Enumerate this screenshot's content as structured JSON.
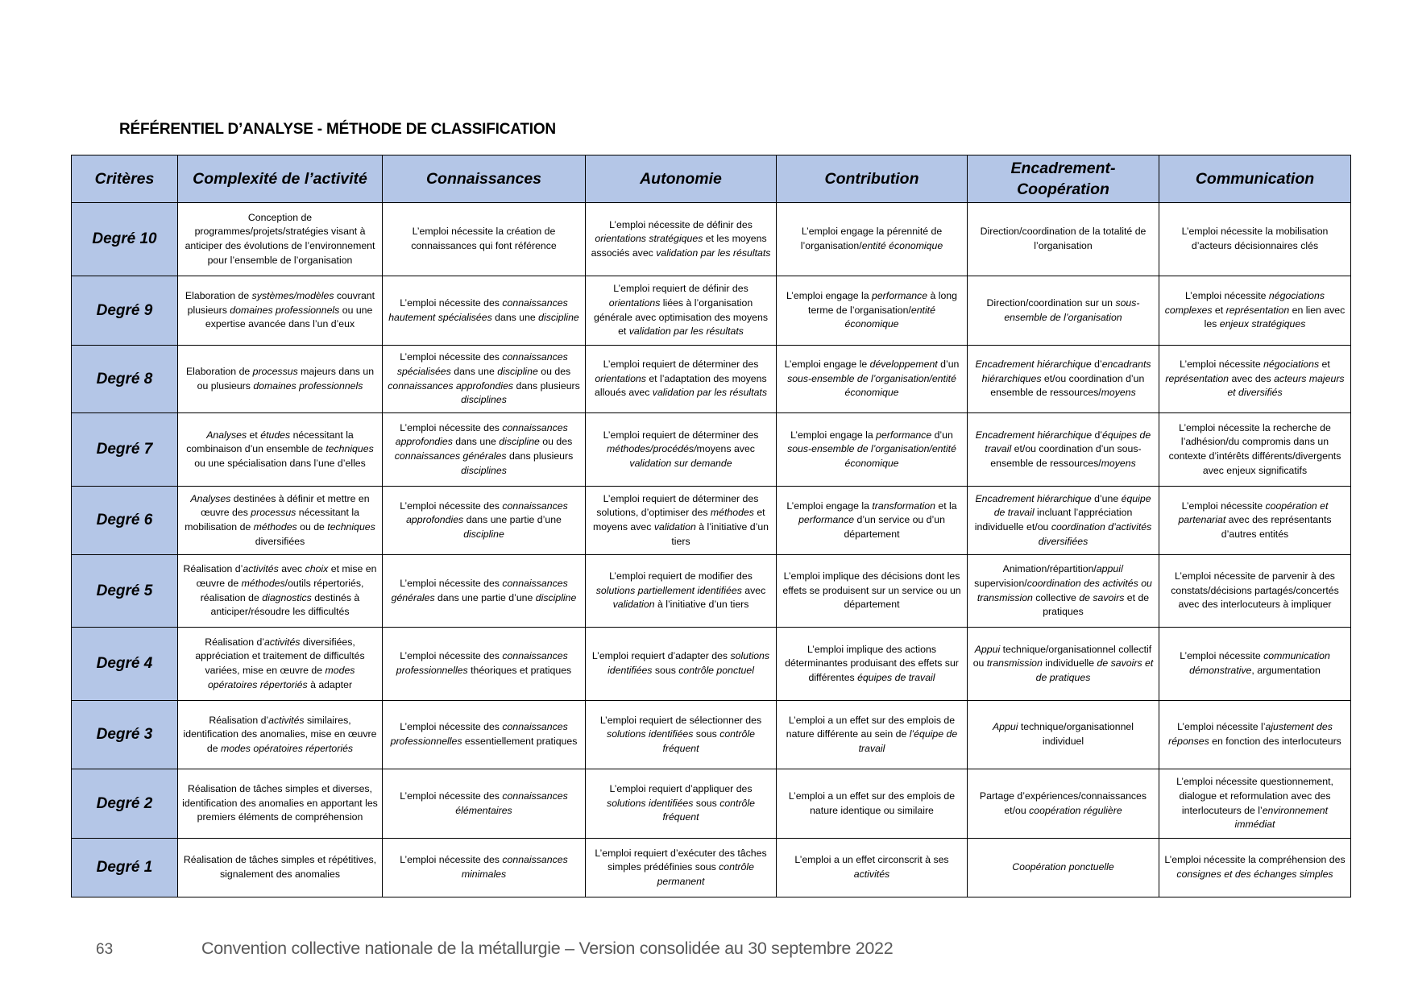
{
  "title": "RÉFÉRENTIEL D’ANALYSE - MÉTHODE DE CLASSIFICATION",
  "table": {
    "headers": [
      "Critères",
      "Complexité de l’activité",
      "Connaissances",
      "Autonomie",
      "Contribution",
      "Encadrement-Coopération",
      "Communication"
    ],
    "header_color": "#b4c6e7",
    "rows": [
      {
        "degree": "Degré 10",
        "cells": [
          [
            "Conception de programmes/projets/stratégies visant à anticiper des évolutions de l’environnement pour l’ensemble de l’organisation"
          ],
          [
            "L’emploi nécessite la création de connaissances qui font référence"
          ],
          [
            "L’emploi nécessite de définir des ",
            "orientations stratégiques",
            " et les moyens associés avec ",
            "validation par les résultats"
          ],
          [
            "L’emploi engage la pérennité de l’organisation/",
            "entité économique"
          ],
          [
            "Direction/coordination de la totalité de l’organisation"
          ],
          [
            "L’emploi nécessite la mobilisation d’acteurs décisionnaires clés"
          ]
        ]
      },
      {
        "degree": "Degré 9",
        "cells": [
          [
            "Elaboration de ",
            "systèmes/modèles",
            " couvrant plusieurs ",
            "domaines professionnels",
            " ou une expertise avancée dans l’un d’eux"
          ],
          [
            "L’emploi nécessite des ",
            "connaissances hautement spécialisées",
            " dans une ",
            "discipline"
          ],
          [
            "L’emploi requiert de définir des ",
            "orientations",
            " liées à l’organisation générale avec optimisation des moyens et ",
            "validation par les résultats"
          ],
          [
            "L’emploi engage la ",
            "performance",
            " à long terme de l’organisation/",
            "entité économique"
          ],
          [
            "Direction/coordination sur un ",
            "sous-ensemble de l’organisation"
          ],
          [
            "L’emploi nécessite ",
            "négociations complexes",
            " et ",
            "représentation",
            " en lien avec les ",
            "enjeux stratégiques"
          ]
        ]
      },
      {
        "degree": "Degré 8",
        "cells": [
          [
            "Elaboration de ",
            "processus",
            " majeurs dans un ou plusieurs ",
            "domaines professionnels"
          ],
          [
            "L’emploi nécessite des ",
            "connaissances spécialisées",
            " dans une ",
            "discipline",
            " ou des ",
            "connaissances approfondies",
            " dans plusieurs ",
            "disciplines"
          ],
          [
            "L’emploi requiert de déterminer des ",
            "orientations",
            " et l’adaptation des moyens alloués avec ",
            "validation par les résultats"
          ],
          [
            "L’emploi engage le ",
            "développement",
            " d’un ",
            "sous-ensemble de l’organisation/entité économique"
          ],
          [
            "",
            "Encadrement hiérarchique",
            " d’",
            "encadrants hiérarchiques",
            " et/ou coordination d’un ensemble de ressources/",
            "moyens"
          ],
          [
            "L’emploi nécessite ",
            "négociations",
            " et ",
            "représentation",
            " avec des ",
            "acteurs majeurs et diversifiés"
          ]
        ]
      },
      {
        "degree": "Degré 7",
        "cells": [
          [
            "",
            "Analyses",
            " et ",
            "études",
            " nécessitant la combinaison d’un ensemble de ",
            "techniques",
            " ou une spécialisation dans l’une d’elles"
          ],
          [
            "L’emploi nécessite des ",
            "connaissances approfondies",
            " dans une ",
            "discipline",
            " ou des ",
            "connaissances générales",
            " dans plusieurs ",
            "disciplines"
          ],
          [
            "L’emploi requiert de déterminer des ",
            "méthodes/procédés/",
            "moyens avec ",
            "validation sur demande"
          ],
          [
            "L’emploi engage la ",
            "performance",
            " d’un ",
            "sous-ensemble de l’organisation/entité économique"
          ],
          [
            "",
            "Encadrement hiérarchique",
            " d’",
            "équipes de travail",
            " et/ou coordination d’un sous-ensemble de ressources/",
            "moyens"
          ],
          [
            "L’emploi nécessite la recherche de l’adhésion/du compromis dans un contexte d’intérêts différents/divergents avec enjeux significatifs"
          ]
        ]
      },
      {
        "degree": "Degré 6",
        "cells": [
          [
            "",
            "Analyses",
            " destinées à définir et mettre en œuvre des ",
            "processus",
            " nécessitant la mobilisation de ",
            "méthodes",
            " ou de ",
            "techniques",
            " diversifiées"
          ],
          [
            "L’emploi nécessite des ",
            "connaissances approfondies",
            " dans une partie d’une ",
            "discipline"
          ],
          [
            "L’emploi requiert de déterminer des solutions, d’optimiser des ",
            "méthodes",
            " et moyens avec ",
            "validation",
            " à l’initiative d’un tiers"
          ],
          [
            "L’emploi engage la ",
            "transformation",
            " et la ",
            "performance",
            " d’un service ou d’un département"
          ],
          [
            "",
            "Encadrement hiérarchique",
            " d’une ",
            "équipe de travail",
            " incluant l’appréciation individuelle et/ou ",
            "coordination d’activités diversifiées"
          ],
          [
            "L’emploi nécessite ",
            "coopération et partenariat",
            " avec des représentants d’autres entités"
          ]
        ]
      },
      {
        "degree": "Degré 5",
        "cells": [
          [
            "Réalisation d’",
            "activités",
            " avec ",
            "choix",
            " et mise en œuvre de ",
            "méthodes",
            "/outils répertoriés, réalisation de ",
            "diagnostics",
            " destinés à anticiper/résoudre les difficultés"
          ],
          [
            "L’emploi nécessite des ",
            "connaissances générales",
            " dans une partie d’une ",
            "discipline"
          ],
          [
            "L’emploi requiert de modifier des ",
            "solutions partiellement identifiées",
            " avec ",
            "validation",
            " à l’initiative d’un tiers"
          ],
          [
            "L’emploi implique des décisions dont les effets se produisent sur un service ou un département"
          ],
          [
            "Animation/répartition/",
            "appui",
            "/ supervision/",
            "coordination des activités ou transmission",
            " collective ",
            "de savoirs",
            " et de pratiques"
          ],
          [
            "L’emploi nécessite de parvenir à des constats/décisions partagés/concertés avec des interlocuteurs à impliquer"
          ]
        ]
      },
      {
        "degree": "Degré 4",
        "cells": [
          [
            "Réalisation d’",
            "activités",
            " diversifiées, appréciation et traitement de difficultés variées, mise en œuvre de ",
            "modes opératoires répertoriés",
            " à adapter"
          ],
          [
            "L’emploi nécessite des ",
            "connaissances professionnelles",
            " théoriques et pratiques"
          ],
          [
            "L’emploi requiert d’adapter des ",
            "solutions identifiées",
            " sous ",
            "contrôle ponctuel"
          ],
          [
            "L’emploi implique des actions déterminantes produisant des effets sur différentes ",
            "équipes de travail"
          ],
          [
            "",
            "Appui",
            " technique/organisationnel collectif ou ",
            "transmission",
            " individuelle ",
            "de savoirs et de pratiques"
          ],
          [
            "L’emploi nécessite ",
            "communication démonstrative",
            ", argumentation"
          ]
        ]
      },
      {
        "degree": "Degré 3",
        "cells": [
          [
            "Réalisation d’",
            "activités",
            " similaires, identification des anomalies, mise en œuvre de ",
            "modes opératoires répertoriés"
          ],
          [
            "L’emploi nécessite des ",
            "connaissances professionnelles",
            " essentiellement pratiques"
          ],
          [
            "L’emploi requiert de sélectionner des ",
            "solutions identifiées",
            " sous ",
            "contrôle fréquent"
          ],
          [
            "L’emploi a un effet sur des emplois de nature différente au sein de ",
            "l’équipe de travail"
          ],
          [
            "",
            "Appui",
            " technique/organisationnel individuel"
          ],
          [
            "L’emploi nécessite l’",
            "ajustement des réponses",
            " en fonction des interlocuteurs"
          ]
        ]
      },
      {
        "degree": "Degré 2",
        "cells": [
          [
            "Réalisation de tâches simples et diverses, identification des anomalies en apportant les premiers éléments de compréhension"
          ],
          [
            "L’emploi nécessite des ",
            "connaissances élémentaires"
          ],
          [
            "L’emploi requiert d’appliquer des ",
            "solutions identifiées",
            " sous ",
            "contrôle fréquent"
          ],
          [
            "L’emploi a un effet sur des emplois de nature identique ou similaire"
          ],
          [
            "Partage d’expériences/connaissances et/ou ",
            "coopération régulière"
          ],
          [
            "L’emploi nécessite questionnement, dialogue et reformulation avec des interlocuteurs de l’",
            "environnement immédiat"
          ]
        ]
      },
      {
        "degree": "Degré 1",
        "cells": [
          [
            "Réalisation de tâches simples et répétitives, signalement des anomalies"
          ],
          [
            "L’emploi nécessite des ",
            "connaissances minimales"
          ],
          [
            "L’emploi requiert d’exécuter des tâches simples prédéfinies sous ",
            "contrôle permanent"
          ],
          [
            "L’emploi a un effet circonscrit à ses ",
            "activités"
          ],
          [
            "",
            "Coopération ponctuelle"
          ],
          [
            "L’emploi nécessite la compréhension des ",
            "consignes et des échanges simples"
          ]
        ]
      }
    ]
  },
  "footer": {
    "page_number": "63",
    "text": "Convention collective nationale de la métallurgie – Version consolidée au 30 septembre 2022"
  }
}
